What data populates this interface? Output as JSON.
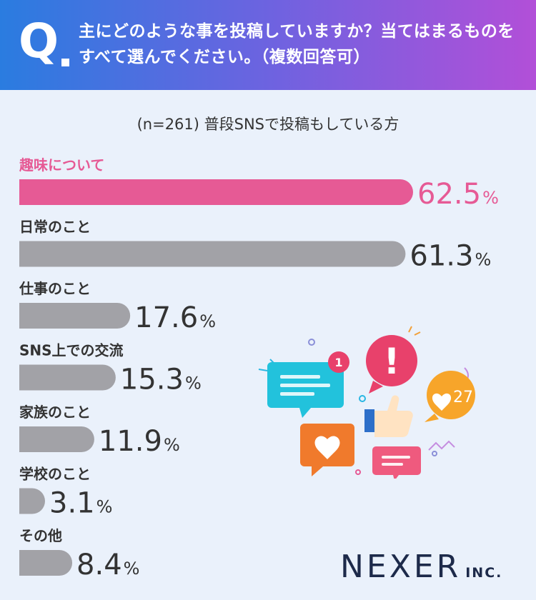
{
  "header": {
    "q_letter": "Q",
    "question": "主にどのような事を投稿していますか？当てはまるものをすべて選んでください。（複数回答可）"
  },
  "subtitle": "(n=261) 普段SNSで投稿もしている方",
  "chart_data": {
    "type": "bar",
    "orientation": "horizontal",
    "categories": [
      "趣味について",
      "日常のこと",
      "仕事のこと",
      "SNS上での交流",
      "家族のこと",
      "学校のこと",
      "その他"
    ],
    "values": [
      62.5,
      61.3,
      17.6,
      15.3,
      11.9,
      3.1,
      8.4
    ],
    "unit": "%",
    "highlight_index": 0,
    "highlight_color": "#e65a95",
    "bar_color": "#a2a2a7",
    "value_color": "#333333",
    "xlim": [
      0,
      100
    ]
  },
  "logo": {
    "name": "NEXER",
    "suffix": "INC."
  },
  "illustration": {
    "badge_count": "1",
    "like_count": "27",
    "alert_mark": "!"
  }
}
